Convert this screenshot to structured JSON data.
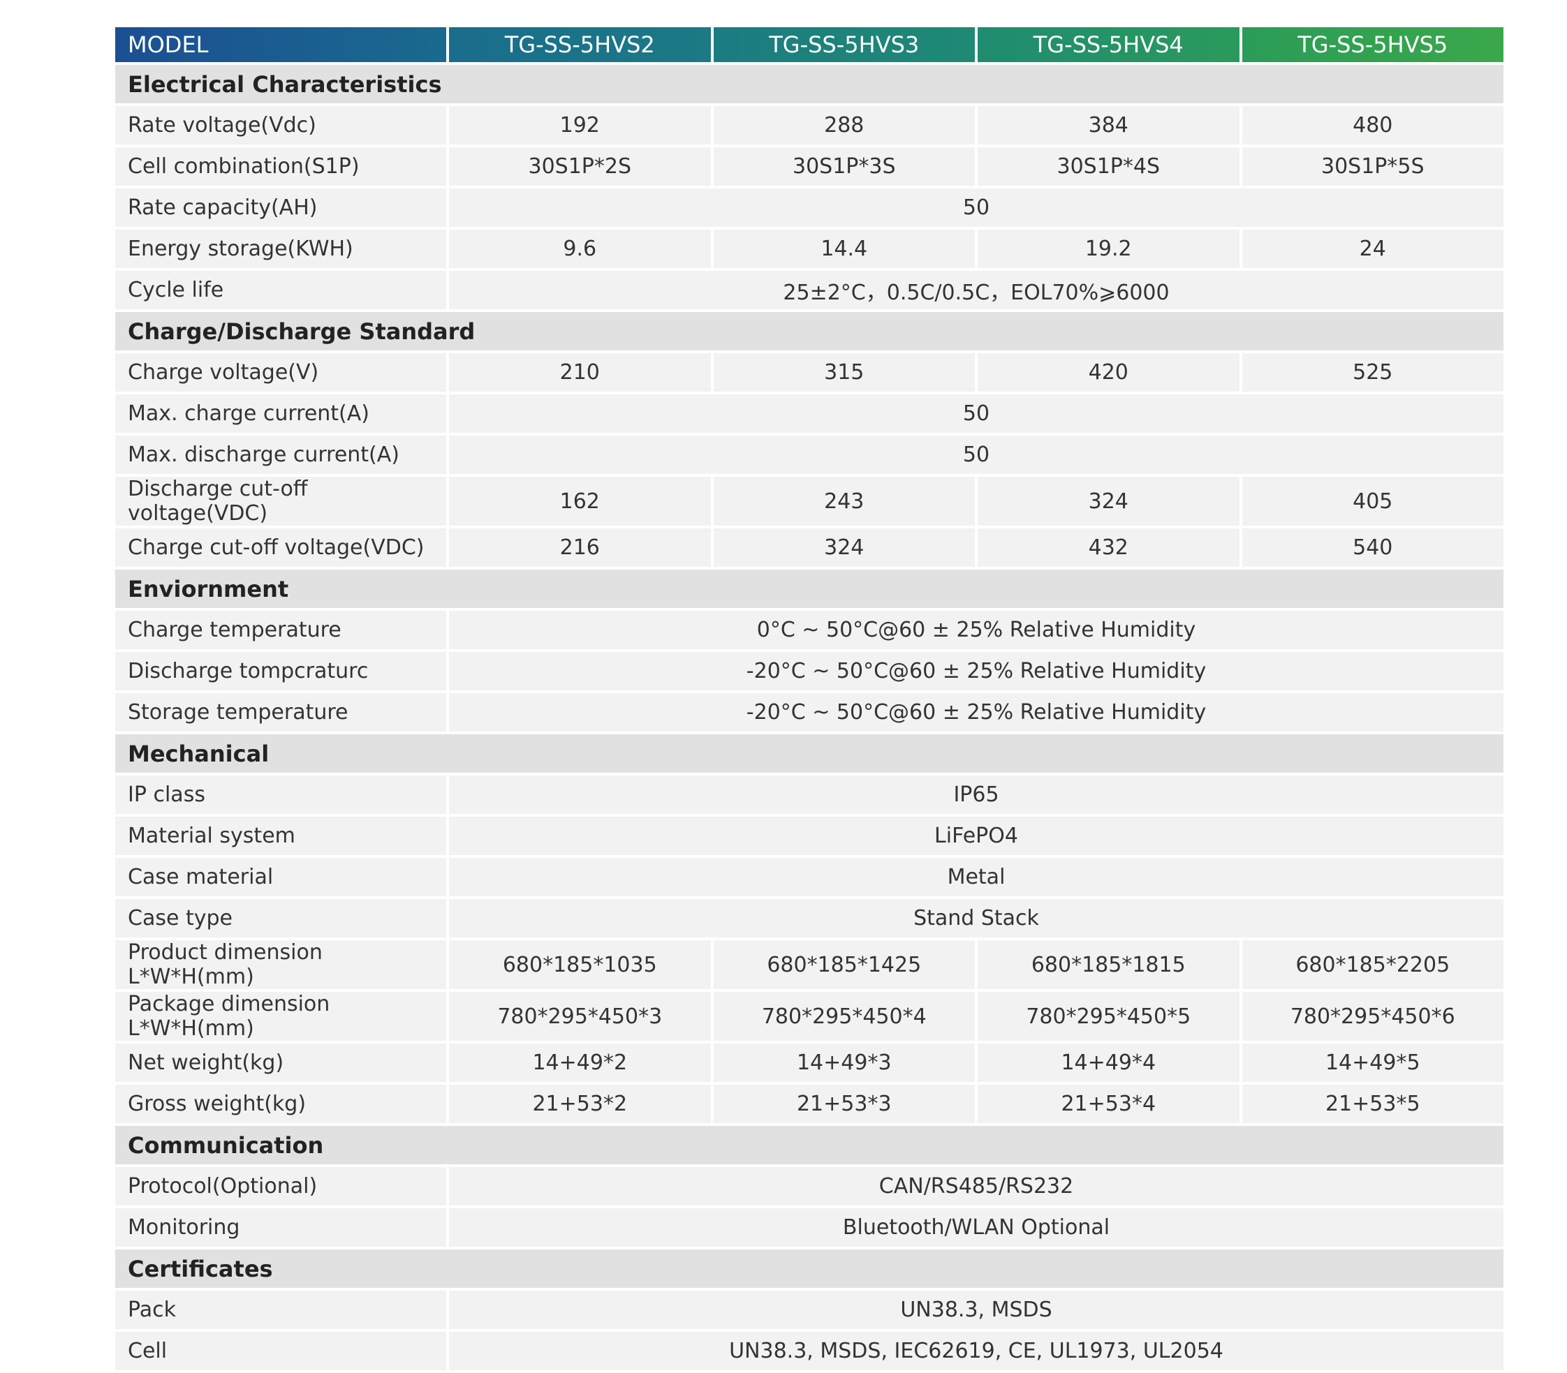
{
  "header": {
    "model_label": "MODEL",
    "models": [
      "TG-SS-5HVS2",
      "TG-SS-5HVS3",
      "TG-SS-5HVS4",
      "TG-SS-5HVS5"
    ]
  },
  "sections": [
    {
      "title": "Electrical Characteristics",
      "rows": [
        {
          "label": "Rate voltage(Vdc)",
          "values": [
            "192",
            "288",
            "384",
            "480"
          ]
        },
        {
          "label": "Cell combination(S1P)",
          "values": [
            "30S1P*2S",
            "30S1P*3S",
            "30S1P*4S",
            "30S1P*5S"
          ]
        },
        {
          "label": "Rate capacity(AH)",
          "values": [
            "50"
          ]
        },
        {
          "label": "Energy storage(KWH)",
          "values": [
            "9.6",
            "14.4",
            "19.2",
            "24"
          ]
        },
        {
          "label": "Cycle life",
          "values": [
            "25±2°C，0.5C/0.5C，EOL70%⩾6000"
          ]
        }
      ]
    },
    {
      "title": "Charge/Discharge Standard",
      "rows": [
        {
          "label": "Charge voltage(V)",
          "values": [
            "210",
            "315",
            "420",
            "525"
          ]
        },
        {
          "label": "Max. charge current(A)",
          "values": [
            "50"
          ]
        },
        {
          "label": "Max. discharge current(A)",
          "values": [
            "50"
          ]
        },
        {
          "label": "Discharge cut-off voltage(VDC)",
          "values": [
            "162",
            "243",
            "324",
            "405"
          ]
        },
        {
          "label": "Charge cut-off voltage(VDC)",
          "values": [
            "216",
            "324",
            "432",
            "540"
          ]
        }
      ]
    },
    {
      "title": "Enviornment",
      "rows": [
        {
          "label": "Charge temperature",
          "values": [
            "0°C ~ 50°C@60 ± 25% Relative Humidity"
          ]
        },
        {
          "label": "Discharge tompcraturc",
          "values": [
            "-20°C ~ 50°C@60 ± 25% Relative Humidity"
          ]
        },
        {
          "label": "Storage temperature",
          "values": [
            "-20°C ~ 50°C@60 ± 25% Relative Humidity"
          ]
        }
      ]
    },
    {
      "title": "Mechanical",
      "rows": [
        {
          "label": "IP class",
          "values": [
            "IP65"
          ]
        },
        {
          "label": "Material system",
          "values": [
            "LiFePO4"
          ]
        },
        {
          "label": "Case material",
          "values": [
            "Metal"
          ]
        },
        {
          "label": "Case type",
          "values": [
            "Stand Stack"
          ]
        },
        {
          "label": "Product dimension L*W*H(mm)",
          "values": [
            "680*185*1035",
            "680*185*1425",
            "680*185*1815",
            "680*185*2205"
          ]
        },
        {
          "label": "Package dimension L*W*H(mm)",
          "values": [
            "780*295*450*3",
            "780*295*450*4",
            "780*295*450*5",
            "780*295*450*6"
          ]
        },
        {
          "label": "Net weight(kg)",
          "values": [
            "14+49*2",
            "14+49*3",
            "14+49*4",
            "14+49*5"
          ]
        },
        {
          "label": "Gross weight(kg)",
          "values": [
            "21+53*2",
            "21+53*3",
            "21+53*4",
            "21+53*5"
          ]
        }
      ]
    },
    {
      "title": "Communication",
      "rows": [
        {
          "label": "Protocol(Optional)",
          "values": [
            "CAN/RS485/RS232"
          ]
        },
        {
          "label": "Monitoring",
          "values": [
            "Bluetooth/WLAN Optional"
          ]
        }
      ]
    },
    {
      "title": "Certificates",
      "rows": [
        {
          "label": "Pack",
          "values": [
            "UN38.3, MSDS"
          ]
        },
        {
          "label": "Cell",
          "values": [
            "UN38.3, MSDS, IEC62619, CE, UL1973, UL2054"
          ]
        }
      ]
    }
  ]
}
